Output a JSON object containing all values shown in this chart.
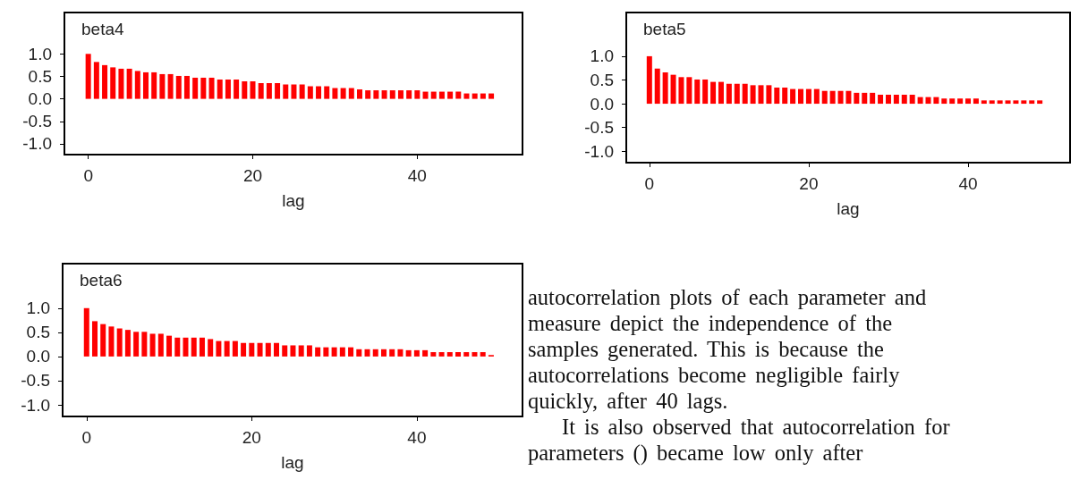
{
  "chart_data": [
    {
      "type": "bar",
      "title": "beta4",
      "xlabel": "lag",
      "color": "#ff0000",
      "x": [
        0,
        1,
        2,
        3,
        4,
        5,
        6,
        7,
        8,
        9,
        10,
        11,
        12,
        13,
        14,
        15,
        16,
        17,
        18,
        19,
        20,
        21,
        22,
        23,
        24,
        25,
        26,
        27,
        28,
        29,
        30,
        31,
        32,
        33,
        34,
        35,
        36,
        37,
        38,
        39,
        40,
        41,
        42,
        43,
        44,
        45,
        46,
        47,
        48,
        49
      ],
      "values": [
        1.0,
        0.82,
        0.75,
        0.7,
        0.67,
        0.67,
        0.62,
        0.59,
        0.59,
        0.55,
        0.55,
        0.51,
        0.51,
        0.47,
        0.47,
        0.47,
        0.43,
        0.43,
        0.43,
        0.39,
        0.39,
        0.35,
        0.35,
        0.35,
        0.32,
        0.32,
        0.32,
        0.28,
        0.28,
        0.28,
        0.24,
        0.24,
        0.24,
        0.21,
        0.19,
        0.19,
        0.19,
        0.19,
        0.19,
        0.19,
        0.19,
        0.16,
        0.16,
        0.16,
        0.16,
        0.16,
        0.12,
        0.12,
        0.12,
        0.12
      ],
      "xlim": [
        -2.9,
        52.8
      ],
      "xticks": [
        0,
        20,
        40
      ],
      "ylim": [
        -1.24,
        1.92
      ],
      "yticks": [
        {
          "value": -1,
          "label": "-1.0"
        },
        {
          "value": -0.5,
          "label": "-0.5"
        },
        {
          "value": 0,
          "label": "0.0"
        },
        {
          "value": 0.5,
          "label": "0.5"
        },
        {
          "value": 1,
          "label": "1.0"
        }
      ]
    },
    {
      "type": "bar",
      "title": "beta5",
      "xlabel": "lag",
      "color": "#ff0000",
      "x": [
        0,
        1,
        2,
        3,
        4,
        5,
        6,
        7,
        8,
        9,
        10,
        11,
        12,
        13,
        14,
        15,
        16,
        17,
        18,
        19,
        20,
        21,
        22,
        23,
        24,
        25,
        26,
        27,
        28,
        29,
        30,
        31,
        32,
        33,
        34,
        35,
        36,
        37,
        38,
        39,
        40,
        41,
        42,
        43,
        44,
        45,
        46,
        47,
        48,
        49
      ],
      "values": [
        1.0,
        0.74,
        0.66,
        0.61,
        0.56,
        0.56,
        0.51,
        0.51,
        0.46,
        0.46,
        0.42,
        0.42,
        0.42,
        0.39,
        0.39,
        0.39,
        0.34,
        0.34,
        0.31,
        0.31,
        0.31,
        0.31,
        0.27,
        0.27,
        0.27,
        0.27,
        0.23,
        0.23,
        0.23,
        0.19,
        0.19,
        0.19,
        0.19,
        0.19,
        0.14,
        0.14,
        0.14,
        0.11,
        0.11,
        0.11,
        0.11,
        0.11,
        0.07,
        0.07,
        0.07,
        0.07,
        0.07,
        0.07,
        0.07,
        0.07
      ],
      "xlim": [
        -2.9,
        52.8
      ],
      "xticks": [
        0,
        20,
        40
      ],
      "ylim": [
        -1.24,
        1.92
      ],
      "yticks": [
        {
          "value": -1,
          "label": "-1.0"
        },
        {
          "value": -0.5,
          "label": "-0.5"
        },
        {
          "value": 0,
          "label": "0.0"
        },
        {
          "value": 0.5,
          "label": "0.5"
        },
        {
          "value": 1,
          "label": "1.0"
        }
      ]
    },
    {
      "type": "bar",
      "title": "beta6",
      "xlabel": "lag",
      "color": "#ff0000",
      "x": [
        0,
        1,
        2,
        3,
        4,
        5,
        6,
        7,
        8,
        9,
        10,
        11,
        12,
        13,
        14,
        15,
        16,
        17,
        18,
        19,
        20,
        21,
        22,
        23,
        24,
        25,
        26,
        27,
        28,
        29,
        30,
        31,
        32,
        33,
        34,
        35,
        36,
        37,
        38,
        39,
        40,
        41,
        42,
        43,
        44,
        45,
        46,
        47,
        48,
        49
      ],
      "values": [
        1.0,
        0.73,
        0.67,
        0.62,
        0.58,
        0.55,
        0.51,
        0.51,
        0.47,
        0.47,
        0.43,
        0.39,
        0.39,
        0.39,
        0.39,
        0.36,
        0.32,
        0.32,
        0.32,
        0.28,
        0.28,
        0.28,
        0.28,
        0.28,
        0.23,
        0.23,
        0.23,
        0.23,
        0.19,
        0.19,
        0.19,
        0.19,
        0.19,
        0.15,
        0.15,
        0.15,
        0.15,
        0.15,
        0.15,
        0.13,
        0.13,
        0.13,
        0.09,
        0.09,
        0.09,
        0.09,
        0.09,
        0.09,
        0.09,
        0.03
      ],
      "xlim": [
        -2.9,
        52.8
      ],
      "xticks": [
        0,
        20,
        40
      ],
      "ylim": [
        -1.24,
        1.92
      ],
      "yticks": [
        {
          "value": -1,
          "label": "-1.0"
        },
        {
          "value": -0.5,
          "label": "-0.5"
        },
        {
          "value": 0,
          "label": "0.0"
        },
        {
          "value": 0.5,
          "label": "0.5"
        },
        {
          "value": 1,
          "label": "1.0"
        }
      ]
    },
    {
      "type": "other",
      "annotations": [
        "autocorrelation plots of each parameter and",
        "measure depict the independence of the",
        "samples generated. This is because the",
        "autocorrelations become negligible fairly",
        "quickly, after 40 lags.",
        "It is also observed that autocorrelation for",
        "parameters () became low only after"
      ]
    }
  ]
}
